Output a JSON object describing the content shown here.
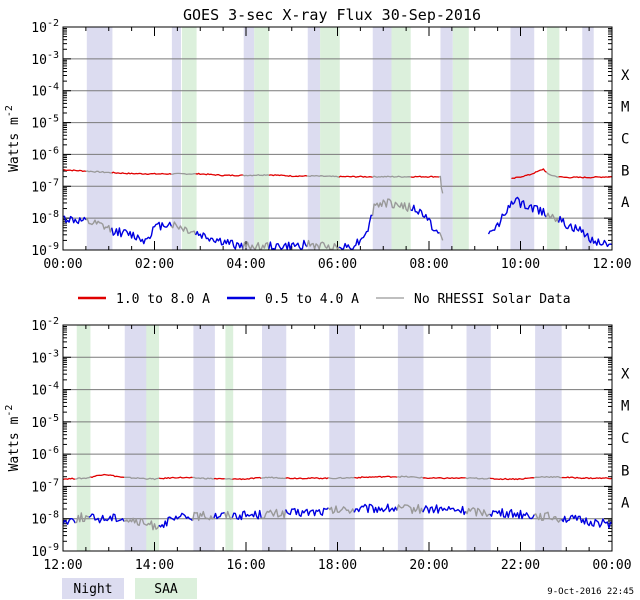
{
  "chart_data": {
    "type": "line",
    "title": "GOES 3-sec X-ray Flux   30-Sep-2016",
    "ylabel_base": "Watts m",
    "ylabel_exp": "-2",
    "yticks": [
      {
        "exp": "-9"
      },
      {
        "exp": "-8"
      },
      {
        "exp": "-7"
      },
      {
        "exp": "-6"
      },
      {
        "exp": "-5"
      },
      {
        "exp": "-4"
      },
      {
        "exp": "-3"
      },
      {
        "exp": "-2"
      }
    ],
    "ytick_base": "10",
    "yscale": "log",
    "ylim": [
      1e-09,
      0.01
    ],
    "grid": true,
    "flare_classes": [
      {
        "label": "A",
        "flux": 1e-08
      },
      {
        "label": "B",
        "flux": 1e-07
      },
      {
        "label": "C",
        "flux": 1e-06
      },
      {
        "label": "M",
        "flux": 1e-05
      },
      {
        "label": "X",
        "flux": 0.0001
      }
    ],
    "legend": {
      "placement": "between-panels",
      "items": [
        {
          "label": "1.0 to 8.0 A",
          "color": "#e00000"
        },
        {
          "label": "0.5 to 4.0 A",
          "color": "#0000e0"
        },
        {
          "label": "No RHESSI Solar Data",
          "color": "#999999"
        }
      ]
    },
    "shade_legend": [
      {
        "label": "Night",
        "color": "#dcdcf0"
      },
      {
        "label": "SAA",
        "color": "#dcf0dc"
      }
    ],
    "footer": "9-Oct-2016 22:45",
    "panels": [
      {
        "xlim": [
          0,
          12
        ],
        "xtick_labels": [
          "00:00",
          "02:00",
          "04:00",
          "06:00",
          "08:00",
          "10:00",
          "12:00"
        ],
        "night": [
          [
            0.52,
            1.08
          ],
          [
            2.38,
            2.58
          ],
          [
            3.95,
            4.18
          ],
          [
            5.35,
            5.62
          ],
          [
            6.77,
            7.18
          ],
          [
            8.25,
            8.52
          ],
          [
            9.78,
            10.3
          ],
          [
            11.35,
            11.6
          ]
        ],
        "saa": [
          [
            2.6,
            2.92
          ],
          [
            4.18,
            4.5
          ],
          [
            5.62,
            6.05
          ],
          [
            7.18,
            7.6
          ],
          [
            8.52,
            8.87
          ],
          [
            10.58,
            10.85
          ]
        ],
        "long": {
          "segments": [
            [
              [
                0,
                3.3e-07
              ],
              [
                0.5,
                3e-07
              ],
              [
                1.0,
                2.7e-07
              ],
              [
                1.5,
                2.5e-07
              ],
              [
                2.0,
                2.45e-07
              ],
              [
                2.5,
                2.45e-07
              ],
              [
                3.0,
                2.45e-07
              ],
              [
                3.5,
                2.2e-07
              ],
              [
                4.0,
                2.2e-07
              ],
              [
                4.5,
                2.3e-07
              ],
              [
                5.0,
                2.1e-07
              ],
              [
                5.5,
                2.1e-07
              ],
              [
                6.0,
                2e-07
              ],
              [
                6.5,
                2e-07
              ],
              [
                7.0,
                2e-07
              ],
              [
                7.5,
                2e-07
              ],
              [
                8.0,
                2e-07
              ],
              [
                8.25,
                2e-07
              ],
              [
                8.27,
                9e-08
              ],
              [
                8.3,
                6e-08
              ]
            ],
            [
              [
                9.8,
                1.7e-07
              ],
              [
                10.0,
                2e-07
              ],
              [
                10.2,
                2.3e-07
              ],
              [
                10.4,
                3e-07
              ],
              [
                10.5,
                3.5e-07
              ],
              [
                10.6,
                2.4e-07
              ],
              [
                10.8,
                2e-07
              ],
              [
                11.0,
                1.9e-07
              ],
              [
                11.5,
                1.9e-07
              ],
              [
                12.0,
                2e-07
              ]
            ]
          ],
          "gray_ranges": [
            [
              0.52,
              1.08
            ],
            [
              2.38,
              2.92
            ],
            [
              3.95,
              4.5
            ],
            [
              5.35,
              6.05
            ],
            [
              6.77,
              7.6
            ],
            [
              8.25,
              8.87
            ],
            [
              10.58,
              10.85
            ]
          ]
        },
        "short": {
          "segments": [
            [
              [
                0,
                1e-08
              ],
              [
                0.4,
                8e-09
              ],
              [
                0.8,
                6e-09
              ],
              [
                1.1,
                4e-09
              ],
              [
                1.5,
                3e-09
              ],
              [
                1.8,
                2e-09
              ],
              [
                2.0,
                5e-09
              ],
              [
                2.3,
                7e-09
              ],
              [
                2.6,
                5e-09
              ],
              [
                3.0,
                3e-09
              ],
              [
                3.4,
                2e-09
              ],
              [
                3.7,
                1.5e-09
              ],
              [
                4.0,
                1.3e-09
              ],
              [
                4.5,
                1.3e-09
              ],
              [
                5.0,
                1.3e-09
              ],
              [
                5.3,
                1.5e-09
              ],
              [
                5.7,
                1.3e-09
              ],
              [
                6.0,
                1.2e-09
              ],
              [
                6.3,
                1.3e-09
              ],
              [
                6.5,
                2e-09
              ],
              [
                6.7,
                6e-09
              ],
              [
                6.8,
                2.5e-08
              ],
              [
                7.0,
                3e-08
              ],
              [
                7.3,
                2.7e-08
              ],
              [
                7.6,
                2.1e-08
              ],
              [
                7.9,
                1.3e-08
              ],
              [
                8.1,
                5e-09
              ],
              [
                8.3,
                2e-09
              ]
            ],
            [
              [
                9.3,
                3e-09
              ],
              [
                9.5,
                6e-09
              ],
              [
                9.7,
                2e-08
              ],
              [
                9.9,
                3.5e-08
              ],
              [
                10.1,
                2.4e-08
              ],
              [
                10.3,
                2e-08
              ],
              [
                10.5,
                1.6e-08
              ],
              [
                10.7,
                1.2e-08
              ],
              [
                11.0,
                6e-09
              ],
              [
                11.3,
                4e-09
              ],
              [
                11.6,
                2e-09
              ],
              [
                12.0,
                1.5e-09
              ]
            ]
          ],
          "gray_ranges": [
            [
              0.52,
              1.08
            ],
            [
              2.38,
              2.92
            ],
            [
              3.95,
              4.5
            ],
            [
              5.35,
              6.05
            ],
            [
              6.77,
              7.6
            ],
            [
              8.25,
              8.87
            ],
            [
              10.58,
              10.85
            ]
          ]
        }
      },
      {
        "xlim": [
          12,
          24
        ],
        "xtick_labels": [
          "12:00",
          "14:00",
          "16:00",
          "18:00",
          "20:00",
          "22:00",
          "00:00"
        ],
        "night": [
          [
            13.35,
            13.9
          ],
          [
            14.85,
            15.32
          ],
          [
            16.35,
            16.88
          ],
          [
            17.82,
            18.38
          ],
          [
            19.32,
            19.88
          ],
          [
            20.82,
            21.35
          ],
          [
            22.32,
            22.9
          ]
        ],
        "saa": [
          [
            12.3,
            12.6
          ],
          [
            13.82,
            14.1
          ],
          [
            15.55,
            15.72
          ]
        ],
        "long": {
          "segments": [
            [
              [
                12.0,
                1.7e-07
              ],
              [
                12.5,
                1.8e-07
              ],
              [
                12.9,
                2.4e-07
              ],
              [
                13.3,
                1.9e-07
              ],
              [
                14.0,
                1.7e-07
              ],
              [
                14.5,
                1.9e-07
              ],
              [
                15.0,
                1.8e-07
              ],
              [
                15.5,
                1.7e-07
              ],
              [
                16.0,
                1.7e-07
              ],
              [
                16.5,
                1.9e-07
              ],
              [
                17.0,
                1.8e-07
              ],
              [
                17.5,
                1.8e-07
              ],
              [
                18.0,
                1.8e-07
              ],
              [
                18.5,
                1.9e-07
              ],
              [
                19.0,
                2e-07
              ],
              [
                19.5,
                2e-07
              ],
              [
                20.0,
                1.8e-07
              ],
              [
                20.5,
                1.8e-07
              ],
              [
                21.0,
                1.8e-07
              ],
              [
                21.5,
                1.7e-07
              ],
              [
                22.0,
                1.7e-07
              ],
              [
                22.5,
                2e-07
              ],
              [
                23.0,
                1.9e-07
              ],
              [
                23.5,
                1.8e-07
              ],
              [
                24.0,
                1.8e-07
              ]
            ]
          ],
          "gray_ranges": [
            [
              12.3,
              12.6
            ],
            [
              13.35,
              14.1
            ],
            [
              14.85,
              15.32
            ],
            [
              15.55,
              15.72
            ],
            [
              16.35,
              16.88
            ],
            [
              17.82,
              18.38
            ],
            [
              19.32,
              19.88
            ],
            [
              20.82,
              21.35
            ],
            [
              22.32,
              22.9
            ]
          ]
        },
        "short": {
          "segments": [
            [
              [
                12.0,
                8e-09
              ],
              [
                12.4,
                1.1e-08
              ],
              [
                12.8,
                1e-08
              ],
              [
                13.2,
                1.1e-08
              ],
              [
                13.6,
                8e-09
              ],
              [
                14.0,
                6e-09
              ],
              [
                14.3,
                8e-09
              ],
              [
                14.6,
                1.1e-08
              ],
              [
                15.0,
                1.2e-08
              ],
              [
                15.5,
                1.3e-08
              ],
              [
                16.0,
                1.3e-08
              ],
              [
                16.5,
                1.4e-08
              ],
              [
                17.0,
                1.5e-08
              ],
              [
                17.5,
                1.6e-08
              ],
              [
                18.0,
                1.8e-08
              ],
              [
                18.5,
                2e-08
              ],
              [
                19.0,
                2.1e-08
              ],
              [
                19.5,
                2e-08
              ],
              [
                20.0,
                2e-08
              ],
              [
                20.5,
                1.9e-08
              ],
              [
                21.0,
                1.7e-08
              ],
              [
                21.5,
                1.5e-08
              ],
              [
                22.0,
                1.4e-08
              ],
              [
                22.5,
                1.2e-08
              ],
              [
                23.0,
                1e-08
              ],
              [
                23.5,
                8e-09
              ],
              [
                24.0,
                7e-09
              ]
            ]
          ],
          "gray_ranges": [
            [
              12.3,
              12.6
            ],
            [
              13.35,
              14.1
            ],
            [
              14.85,
              15.32
            ],
            [
              15.55,
              15.72
            ],
            [
              16.35,
              16.88
            ],
            [
              17.82,
              18.38
            ],
            [
              19.32,
              19.88
            ],
            [
              20.82,
              21.35
            ],
            [
              22.32,
              22.9
            ]
          ]
        }
      }
    ]
  }
}
